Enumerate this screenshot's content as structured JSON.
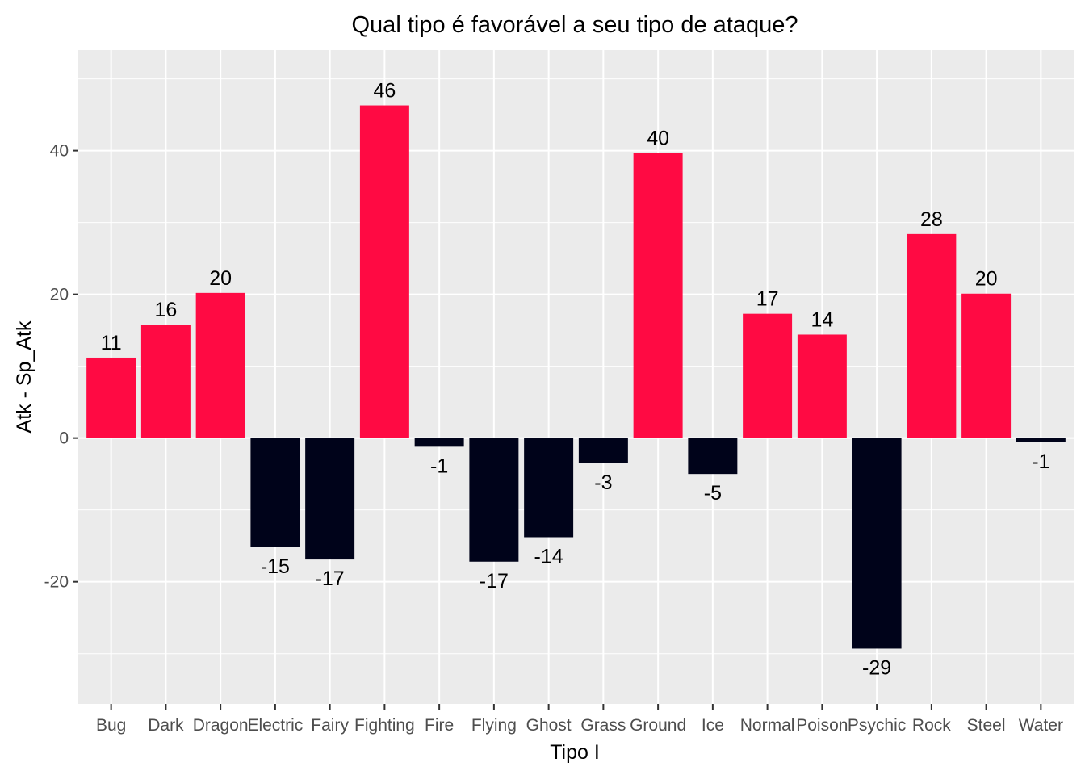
{
  "chart_data": {
    "type": "bar",
    "title": "Qual tipo é favorável a seu tipo de ataque?",
    "xlabel": "Tipo I",
    "ylabel": "Atk - Sp_Atk",
    "categories": [
      "Bug",
      "Dark",
      "Dragon",
      "Electric",
      "Fairy",
      "Fighting",
      "Fire",
      "Flying",
      "Ghost",
      "Grass",
      "Ground",
      "Ice",
      "Normal",
      "Poison",
      "Psychic",
      "Rock",
      "Steel",
      "Water"
    ],
    "values": [
      11.2,
      15.8,
      20.2,
      -15.2,
      -16.9,
      46.3,
      -1.2,
      -17.2,
      -13.8,
      -3.5,
      39.7,
      -5.0,
      17.3,
      14.4,
      -29.3,
      28.4,
      20.1,
      -0.6
    ],
    "data_labels": [
      "11",
      "16",
      "20",
      "-15",
      "-17",
      "46",
      "-1",
      "-17",
      "-14",
      "-3",
      "40",
      "-5",
      "17",
      "14",
      "-29",
      "28",
      "20",
      "-1"
    ],
    "ylim": [
      -37,
      54
    ],
    "yticks": [
      -20,
      0,
      20,
      40
    ],
    "ytick_labels": [
      "-20",
      "0",
      "20",
      "40"
    ],
    "grid": true,
    "legend": "none",
    "colors": {
      "positive": "#ff0a43",
      "negative": "#00031a",
      "panel": "#ebebeb",
      "grid": "#ffffff"
    }
  }
}
